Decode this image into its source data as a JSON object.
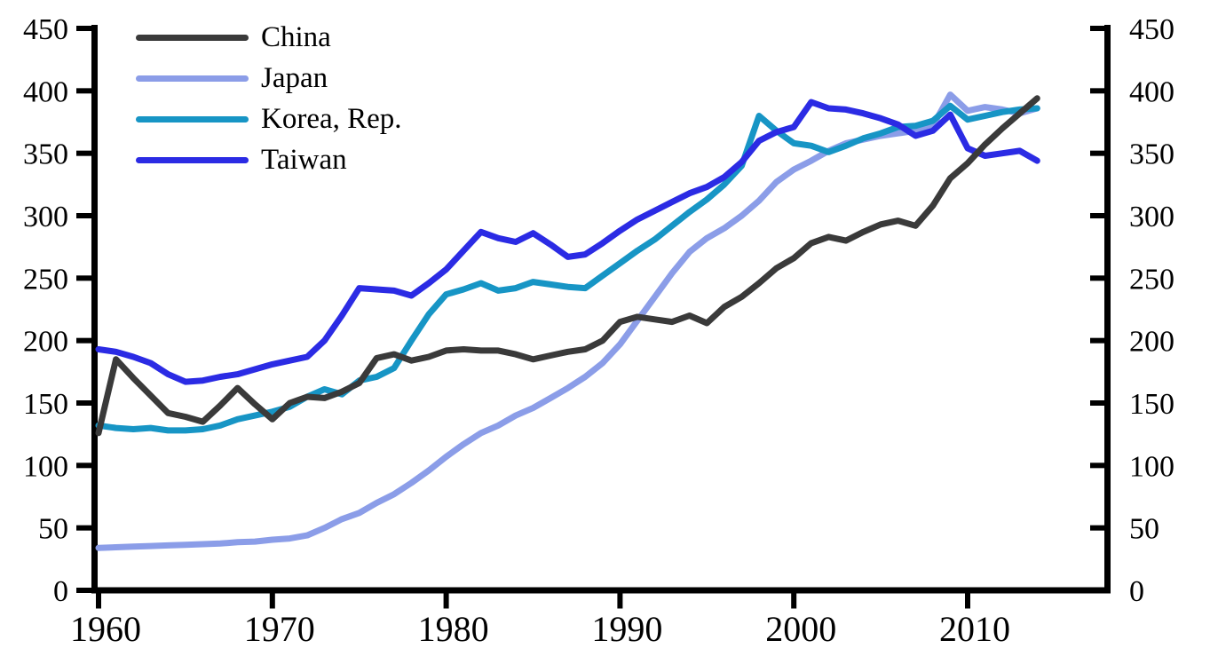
{
  "figure": {
    "background_color": "#ffffff",
    "text_color": "#000000",
    "axis_color": "#000000"
  },
  "chart_data": {
    "type": "line",
    "title": "",
    "xlabel": "",
    "ylabel": "",
    "grid": false,
    "legend_position": "upper left",
    "x_axis": {
      "ticks": [
        1960,
        1970,
        1980,
        1990,
        2000,
        2010
      ],
      "tick_labels": [
        "1960",
        "1970",
        "1980",
        "1990",
        "2000",
        "2010"
      ],
      "data_range": [
        1960,
        2014
      ]
    },
    "y_axis": {
      "range": [
        0,
        450
      ],
      "ticks": [
        0,
        50,
        100,
        150,
        200,
        250,
        300,
        350,
        400,
        450
      ],
      "tick_labels": [
        "0",
        "50",
        "100",
        "150",
        "200",
        "250",
        "300",
        "350",
        "400",
        "450"
      ],
      "sides": [
        "left",
        "right"
      ]
    },
    "x": [
      1960,
      1961,
      1962,
      1963,
      1964,
      1965,
      1966,
      1967,
      1968,
      1969,
      1970,
      1971,
      1972,
      1973,
      1974,
      1975,
      1976,
      1977,
      1978,
      1979,
      1980,
      1981,
      1982,
      1983,
      1984,
      1985,
      1986,
      1987,
      1988,
      1989,
      1990,
      1991,
      1992,
      1993,
      1994,
      1995,
      1996,
      1997,
      1998,
      1999,
      2000,
      2001,
      2002,
      2003,
      2004,
      2005,
      2006,
      2007,
      2008,
      2009,
      2010,
      2011,
      2012,
      2013,
      2014
    ],
    "series": [
      {
        "name": "China",
        "color": "#3a3a3a",
        "values": [
          126,
          185,
          170,
          156,
          142,
          139,
          135,
          148,
          162,
          149,
          137,
          150,
          155,
          154,
          159,
          166,
          186,
          189,
          184,
          187,
          192,
          193,
          192,
          192,
          189,
          185,
          188,
          191,
          193,
          200,
          215,
          219,
          217,
          215,
          220,
          214,
          227,
          235,
          246,
          258,
          266,
          278,
          283,
          280,
          287,
          293,
          296,
          292,
          308,
          330,
          342,
          357,
          370,
          382,
          394
        ]
      },
      {
        "name": "Japan",
        "color": "#8b9de8",
        "values": [
          34,
          34.5,
          35,
          35.5,
          36,
          36.5,
          37,
          37.5,
          38.5,
          39,
          40.5,
          41.5,
          44,
          50,
          57,
          62,
          70,
          77,
          86,
          96,
          107,
          117,
          126,
          132,
          140,
          146,
          154,
          162,
          171,
          182,
          197,
          216,
          235,
          254,
          271,
          282,
          290,
          300,
          312,
          327,
          337,
          344,
          352,
          358,
          361,
          364,
          366,
          368,
          372,
          397,
          384,
          387,
          385,
          382,
          386
        ]
      },
      {
        "name": "Korea, Rep.",
        "color": "#1795c5",
        "values": [
          132,
          130,
          129,
          130,
          128,
          128,
          129,
          132,
          137,
          140,
          143,
          147,
          155,
          161,
          157,
          168,
          171,
          178,
          200,
          221,
          237,
          241,
          246,
          240,
          242,
          247,
          245,
          243,
          242,
          252,
          262,
          272,
          281,
          292,
          303,
          313,
          325,
          340,
          380,
          368,
          358,
          356,
          351,
          356,
          362,
          366,
          371,
          372,
          376,
          388,
          377,
          380,
          383,
          385,
          386
        ]
      },
      {
        "name": "Taiwan",
        "color": "#2b2be4",
        "values": [
          193,
          191,
          187,
          182,
          173,
          167,
          168,
          171,
          173,
          177,
          181,
          184,
          187,
          200,
          220,
          242,
          241,
          240,
          236,
          246,
          257,
          272,
          287,
          282,
          279,
          286,
          277,
          267,
          269,
          278,
          288,
          297,
          304,
          311,
          318,
          323,
          331,
          343,
          360,
          367,
          371,
          391,
          386,
          385,
          382,
          378,
          373,
          364,
          368,
          381,
          354,
          348,
          350,
          352,
          344
        ]
      }
    ]
  },
  "legend": {
    "items": [
      "China",
      "Japan",
      "Korea, Rep.",
      "Taiwan"
    ]
  }
}
